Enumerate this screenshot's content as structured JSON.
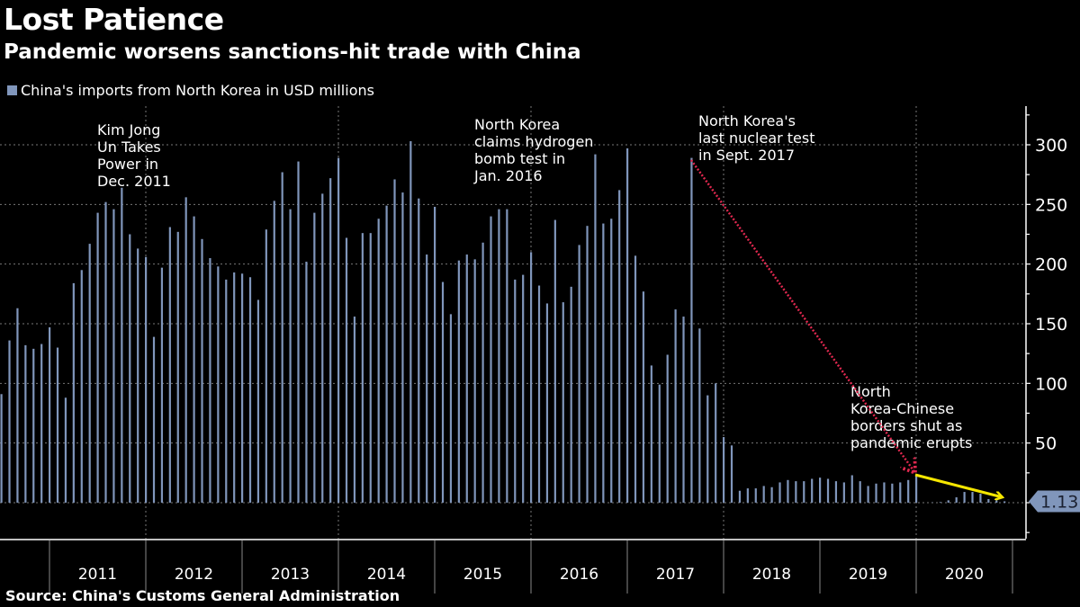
{
  "title": "Lost Patience",
  "subtitle": "Pandemic worsens sanctions-hit trade with China",
  "source": "Source: China's Customs General Administration",
  "colors": {
    "bar": "#8096bb",
    "nuclear_arrow": "#e0284f",
    "pandemic_arrow": "#f5e600",
    "last_value_box": "#8096bb"
  },
  "chart_data": {
    "type": "bar",
    "legend": [
      "China's imports from North Korea in USD millions"
    ],
    "legend_position": "top-left",
    "ylabel": "",
    "ylim": [
      -30,
      333
    ],
    "yticks": [
      50,
      100,
      150,
      200,
      250,
      300
    ],
    "grid": true,
    "y_axis_side": "right",
    "x_year_labels": [
      "2011",
      "2012",
      "2013",
      "2014",
      "2015",
      "2016",
      "2017",
      "2018",
      "2019",
      "2020"
    ],
    "start_month": "2010-07",
    "series": [
      {
        "name": "China's imports from North Korea in USD millions",
        "values": [
          91,
          136,
          163,
          132,
          129,
          133,
          147,
          130,
          88,
          184,
          195,
          217,
          243,
          252,
          246,
          264,
          225,
          213,
          206,
          139,
          197,
          231,
          227,
          256,
          240,
          221,
          205,
          198,
          187,
          193,
          192,
          189,
          170,
          229,
          253,
          277,
          246,
          286,
          202,
          243,
          259,
          272,
          289,
          222,
          156,
          226,
          226,
          238,
          249,
          271,
          260,
          303,
          255,
          208,
          248,
          185,
          158,
          203,
          208,
          204,
          218,
          240,
          246,
          246,
          187,
          191,
          210,
          182,
          167,
          237,
          168,
          181,
          216,
          232,
          292,
          234,
          238,
          262,
          297,
          207,
          177,
          115,
          99,
          124,
          162,
          156,
          289,
          146,
          90,
          100,
          55,
          48,
          10,
          12,
          12,
          14,
          13,
          17,
          19,
          18,
          18,
          20,
          21,
          20,
          18,
          17,
          23,
          18,
          14,
          16,
          17,
          16,
          17,
          19,
          23,
          0,
          0.2,
          0.5,
          2,
          4.5,
          9,
          9,
          7.5,
          3,
          2,
          1.13
        ]
      }
    ],
    "last_value_label": "1.13",
    "annotations": [
      {
        "lines": [
          "Kim Jong",
          "Un Takes",
          "Power in",
          "Dec. 2011"
        ]
      },
      {
        "lines": [
          "North Korea",
          "claims hydrogen",
          "bomb test in",
          "Jan. 2016"
        ]
      },
      {
        "lines": [
          "North Korea's",
          "last nuclear test",
          "in Sept. 2017"
        ]
      },
      {
        "lines": [
          "North",
          "Korea-Chinese",
          "borders shut as",
          "pandemic erupts"
        ]
      }
    ]
  }
}
